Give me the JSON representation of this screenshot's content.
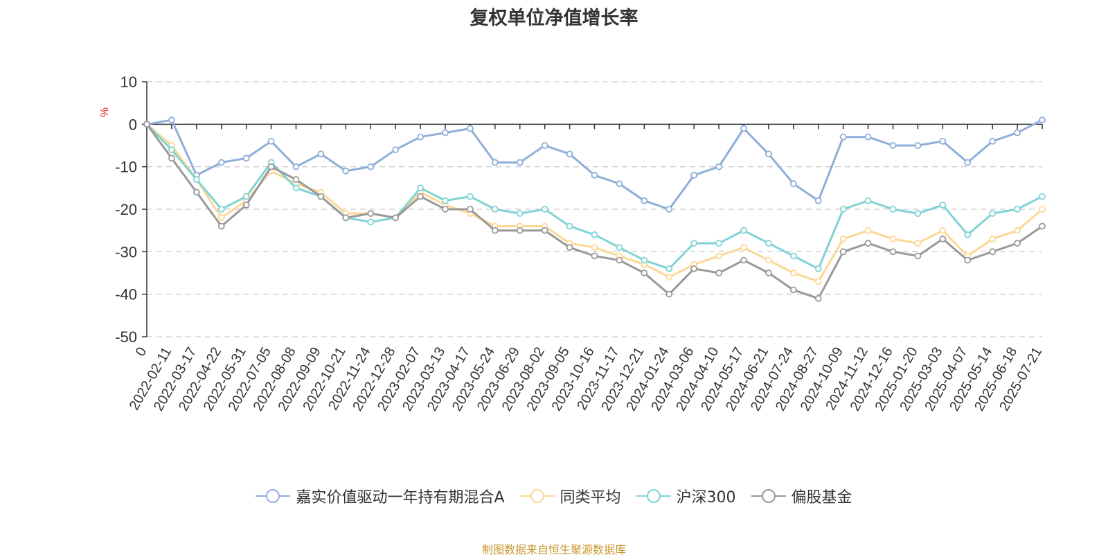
{
  "chart_data": {
    "type": "line",
    "title": "复权单位净值增长率",
    "ylabel": "%",
    "xlabel": "",
    "ylim": [
      -50,
      10
    ],
    "yticks": [
      10,
      0,
      -10,
      -20,
      -30,
      -40,
      -50
    ],
    "grid": true,
    "legend_position": "bottom",
    "categories": [
      "0",
      "2022-02-11",
      "2022-03-17",
      "2022-04-22",
      "2022-05-31",
      "2022-07-05",
      "2022-08-08",
      "2022-09-09",
      "2022-10-21",
      "2022-11-24",
      "2022-12-28",
      "2023-02-07",
      "2023-03-13",
      "2023-04-17",
      "2023-05-24",
      "2023-06-29",
      "2023-08-02",
      "2023-09-05",
      "2023-10-16",
      "2023-11-17",
      "2023-12-21",
      "2024-01-24",
      "2024-03-06",
      "2024-04-10",
      "2024-05-17",
      "2024-06-21",
      "2024-07-24",
      "2024-08-27",
      "2024-10-09",
      "2024-11-12",
      "2024-12-16",
      "2025-01-20",
      "2025-03-03",
      "2025-04-07",
      "2025-05-14",
      "2025-06-18",
      "2025-07-21"
    ],
    "series": [
      {
        "name": "嘉实价值驱动一年持有期混合A",
        "color": "#8eaed9",
        "values": [
          0,
          1,
          -12,
          -9,
          -8,
          -4,
          -10,
          -7,
          -11,
          -10,
          -6,
          -3,
          -2,
          -1,
          -9,
          -9,
          -5,
          -7,
          -12,
          -14,
          -18,
          -20,
          -12,
          -10,
          -1,
          -7,
          -14,
          -18,
          -3,
          -3,
          -5,
          -5,
          -4,
          -9,
          -4,
          -2,
          1
        ]
      },
      {
        "name": "同类平均",
        "color": "#fdd795",
        "values": [
          0,
          -5,
          -13,
          -22,
          -18,
          -11,
          -14,
          -16,
          -21,
          -21,
          -22,
          -16,
          -19,
          -21,
          -24,
          -24,
          -24,
          -28,
          -29,
          -31,
          -33,
          -36,
          -33,
          -31,
          -29,
          -32,
          -35,
          -37,
          -27,
          -25,
          -27,
          -28,
          -25,
          -31,
          -27,
          -25,
          -20
        ]
      },
      {
        "name": "沪深300",
        "color": "#80d3d4",
        "values": [
          0,
          -6,
          -13,
          -20,
          -17,
          -9,
          -15,
          -17,
          -22,
          -23,
          -22,
          -15,
          -18,
          -17,
          -20,
          -21,
          -20,
          -24,
          -26,
          -29,
          -32,
          -34,
          -28,
          -28,
          -25,
          -28,
          -31,
          -34,
          -20,
          -18,
          -20,
          -21,
          -19,
          -26,
          -21,
          -20,
          -17
        ]
      },
      {
        "name": "偏股基金",
        "color": "#999999",
        "values": [
          0,
          -8,
          -16,
          -24,
          -19,
          -10,
          -13,
          -17,
          -22,
          -21,
          -22,
          -17,
          -20,
          -20,
          -25,
          -25,
          -25,
          -29,
          -31,
          -32,
          -35,
          -40,
          -34,
          -35,
          -32,
          -35,
          -39,
          -41,
          -30,
          -28,
          -30,
          -31,
          -27,
          -32,
          -30,
          -28,
          -24
        ]
      }
    ]
  },
  "footer": {
    "source": "制图数据来自恒生聚源数据库"
  }
}
